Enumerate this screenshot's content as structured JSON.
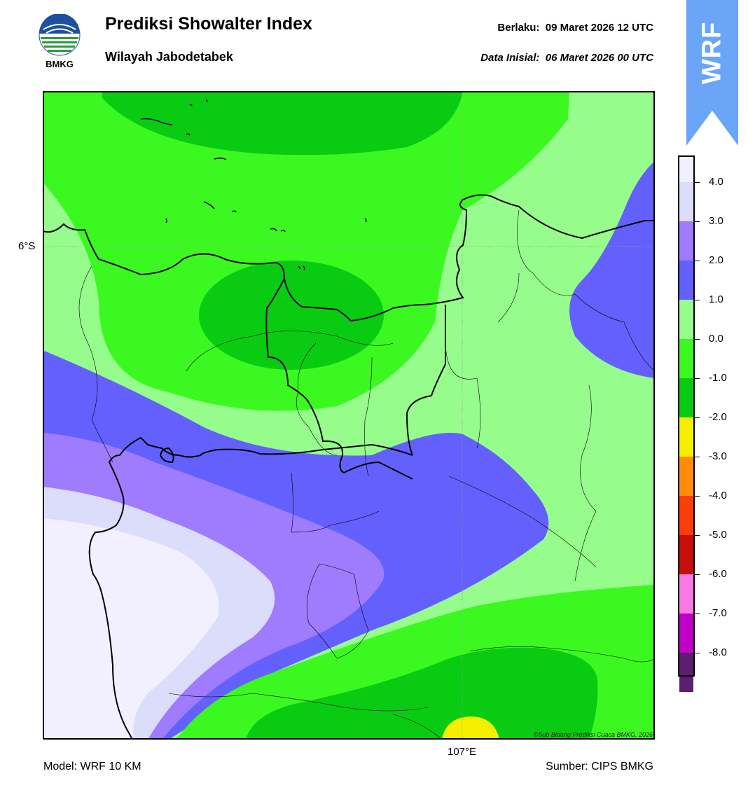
{
  "header": {
    "logo_text": "BMKG",
    "title": "Prediksi Showalter Index",
    "subtitle": "Wilayah Jabodetabek",
    "valid_time": "Berlaku:  09 Maret 2026 12 UTC",
    "init_time": "Data Inisial:  06 Maret 2026 00 UTC",
    "badge": "WRF"
  },
  "map": {
    "lat_label": "6°S",
    "lon_label": "107°E",
    "copyright": "©Sub Bidang Prediksi Cuaca BMKG, 2026"
  },
  "footer": {
    "model": "Model: WRF 10 KM",
    "source": "Sumber: CIPS BMKG"
  },
  "colorbar": {
    "labels": [
      "4.0",
      "3.0",
      "2.0",
      "1.0",
      "0.0",
      "-1.0",
      "-2.0",
      "-3.0",
      "-4.0",
      "-5.0",
      "-6.0",
      "-7.0",
      "-8.0"
    ],
    "colors": [
      "#f2f0ff",
      "#dcdcfb",
      "#9f7cfd",
      "#6460fe",
      "#96fd8c",
      "#3cf821",
      "#09cc12",
      "#f6f000",
      "#fe8d0b",
      "#fb3e0a",
      "#c80e0a",
      "#f87ae6",
      "#c000c8",
      "#5c1e6e"
    ],
    "accent": "#6aa5f8"
  }
}
